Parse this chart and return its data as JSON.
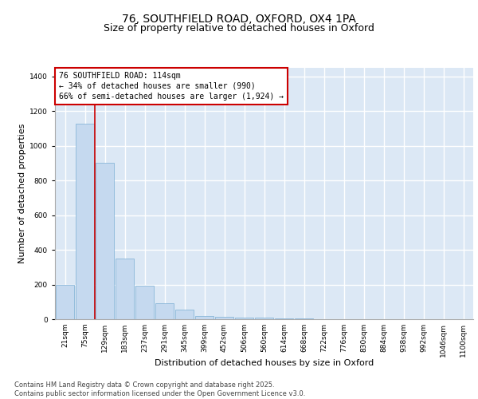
{
  "title_line1": "76, SOUTHFIELD ROAD, OXFORD, OX4 1PA",
  "title_line2": "Size of property relative to detached houses in Oxford",
  "xlabel": "Distribution of detached houses by size in Oxford",
  "ylabel": "Number of detached properties",
  "bar_labels": [
    "21sqm",
    "75sqm",
    "129sqm",
    "183sqm",
    "237sqm",
    "291sqm",
    "345sqm",
    "399sqm",
    "452sqm",
    "506sqm",
    "560sqm",
    "614sqm",
    "668sqm",
    "722sqm",
    "776sqm",
    "830sqm",
    "884sqm",
    "938sqm",
    "992sqm",
    "1046sqm",
    "1100sqm"
  ],
  "bar_values": [
    200,
    1130,
    900,
    350,
    195,
    90,
    55,
    20,
    15,
    10,
    10,
    5,
    5,
    0,
    0,
    0,
    0,
    0,
    0,
    0,
    0
  ],
  "bar_color": "#c5d9ef",
  "bar_edge_color": "#7aaed4",
  "background_color": "#dce8f5",
  "grid_color": "#ffffff",
  "annotation_text": "76 SOUTHFIELD ROAD: 114sqm\n← 34% of detached houses are smaller (990)\n66% of semi-detached houses are larger (1,924) →",
  "annotation_box_color": "#ffffff",
  "annotation_box_edge": "#cc0000",
  "vline_color": "#cc0000",
  "ylim": [
    0,
    1450
  ],
  "yticks": [
    0,
    200,
    400,
    600,
    800,
    1000,
    1200,
    1400
  ],
  "footer_text": "Contains HM Land Registry data © Crown copyright and database right 2025.\nContains public sector information licensed under the Open Government Licence v3.0.",
  "title_fontsize": 10,
  "subtitle_fontsize": 9,
  "axis_label_fontsize": 8,
  "tick_fontsize": 6.5,
  "annotation_fontsize": 7,
  "footer_fontsize": 6
}
